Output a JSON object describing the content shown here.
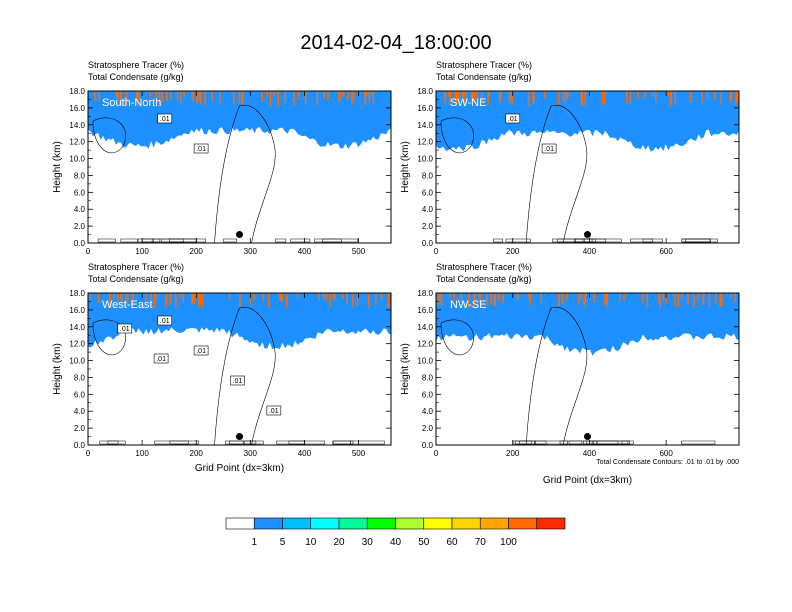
{
  "figure_title": "2014-02-04_18:00:00",
  "panel_label_line1": "Stratosphere Tracer   (%)",
  "panel_label_line2": "Total Condensate   (g/kg)",
  "y_axis_label": "Height (km)",
  "x_axis_label": "Grid Point (dx=3km)",
  "contour_note": "Total Condensate Contours: .01 to .01 by .000",
  "colorbar": {
    "levels": [
      "1",
      "5",
      "10",
      "20",
      "30",
      "40",
      "50",
      "60",
      "70",
      "100"
    ],
    "colors": [
      "#ffffff",
      "#1e90ff",
      "#00bfff",
      "#00ffff",
      "#00fa9a",
      "#00ff00",
      "#adff2f",
      "#ffff00",
      "#ffd700",
      "#ffa500",
      "#ff6b00",
      "#ff2a00"
    ]
  },
  "chart_data": [
    {
      "type": "heatmap",
      "name": "South-North",
      "title": "Stratosphere Tracer   (%)",
      "subtitle": "Total Condensate   (g/kg)",
      "ylabel": "Height (km)",
      "xlabel": "",
      "xlim": [
        0,
        560
      ],
      "ylim": [
        0,
        18
      ],
      "xticks": [
        "0",
        "100",
        "200",
        "300",
        "400",
        "500"
      ],
      "yticks": [
        "0.0",
        "2.0",
        "4.0",
        "6.0",
        "8.0",
        "10.0",
        "12.0",
        "14.0",
        "16.0",
        "18.0"
      ],
      "contour_labels": [
        ".01",
        ".01"
      ],
      "marker": {
        "x": 280,
        "y": 1.0
      },
      "green_base_km": 14.3,
      "blue_base_km": 13.3
    },
    {
      "type": "heatmap",
      "name": "SW-NE",
      "title": "Stratosphere Tracer   (%)",
      "subtitle": "Total Condensate   (g/kg)",
      "ylabel": "Height (km)",
      "xlabel": "",
      "xlim": [
        0,
        790
      ],
      "ylim": [
        0,
        18
      ],
      "xticks": [
        "0",
        "200",
        "400",
        "600"
      ],
      "yticks": [
        "0.0",
        "2.0",
        "4.0",
        "6.0",
        "8.0",
        "10.0",
        "12.0",
        "14.0",
        "16.0",
        "18.0"
      ],
      "contour_labels": [
        ".01",
        ".01"
      ],
      "marker": {
        "x": 395,
        "y": 1.0
      },
      "green_base_km": 14.3,
      "blue_base_km": 13.0
    },
    {
      "type": "heatmap",
      "name": "West-East",
      "title": "Stratosphere Tracer   (%)",
      "subtitle": "Total Condensate   (g/kg)",
      "ylabel": "Height (km)",
      "xlabel": "Grid Point (dx=3km)",
      "xlim": [
        0,
        560
      ],
      "ylim": [
        0,
        18
      ],
      "xticks": [
        "0",
        "100",
        "200",
        "300",
        "400",
        "500"
      ],
      "yticks": [
        "0.0",
        "2.0",
        "4.0",
        "6.0",
        "8.0",
        "10.0",
        "12.0",
        "14.0",
        "16.0",
        "18.0"
      ],
      "contour_labels": [
        ".01",
        ".01",
        ".01",
        ".01",
        ".01",
        ".01"
      ],
      "marker": {
        "x": 280,
        "y": 1.0
      },
      "green_base_km": 14.5,
      "blue_base_km": 13.5
    },
    {
      "type": "heatmap",
      "name": "NW-SE",
      "title": "Stratosphere Tracer   (%)",
      "subtitle": "Total Condensate   (g/kg)",
      "ylabel": "Height (km)",
      "xlabel": "Grid Point (dx=3km)",
      "xlim": [
        0,
        790
      ],
      "ylim": [
        0,
        18
      ],
      "xticks": [
        "0",
        "200",
        "400",
        "600"
      ],
      "yticks": [
        "0.0",
        "2.0",
        "4.0",
        "6.0",
        "8.0",
        "10.0",
        "12.0",
        "14.0",
        "16.0",
        "18.0"
      ],
      "contour_labels": [],
      "marker": {
        "x": 395,
        "y": 1.0
      },
      "green_base_km": 14.0,
      "blue_base_km": 12.8
    }
  ]
}
